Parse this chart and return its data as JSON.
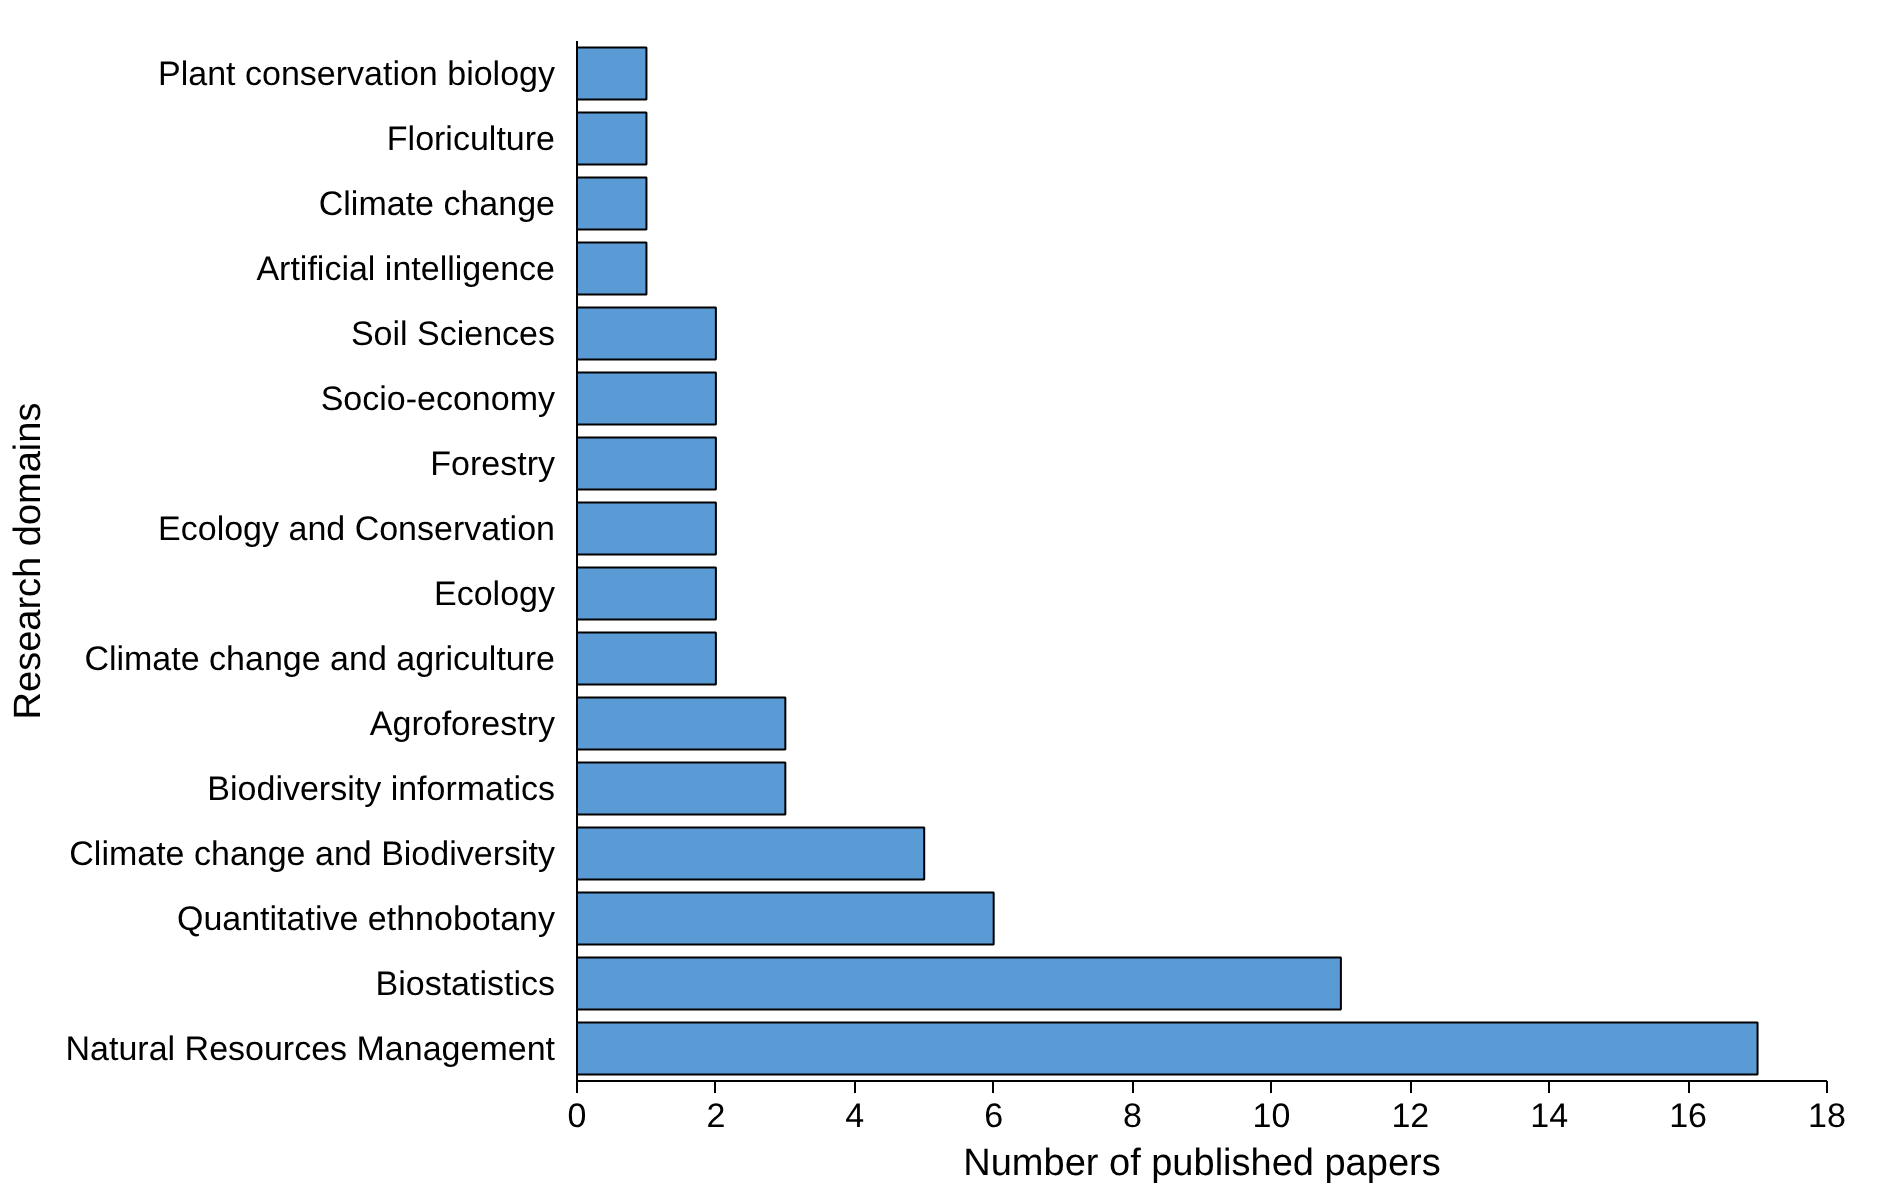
{
  "chart_data": {
    "type": "bar",
    "orientation": "horizontal",
    "xlabel": "Number of published papers",
    "ylabel": "Research domains",
    "categories": [
      "Plant conservation biology",
      "Floriculture",
      "Climate change",
      "Artificial intelligence",
      "Soil Sciences",
      "Socio-economy",
      "Forestry",
      "Ecology and Conservation",
      "Ecology",
      "Climate change and agriculture",
      "Agroforestry",
      "Biodiversity informatics",
      "Climate change and Biodiversity",
      "Quantitative ethnobotany",
      "Biostatistics",
      "Natural Resources Management"
    ],
    "values": [
      1,
      1,
      1,
      1,
      2,
      2,
      2,
      2,
      2,
      2,
      3,
      3,
      5,
      6,
      11,
      17
    ],
    "color": "#5b9bd5",
    "xlim": [
      0,
      18
    ],
    "xticks": [
      0,
      2,
      4,
      6,
      8,
      10,
      12,
      14,
      16,
      18
    ],
    "grid": false
  }
}
